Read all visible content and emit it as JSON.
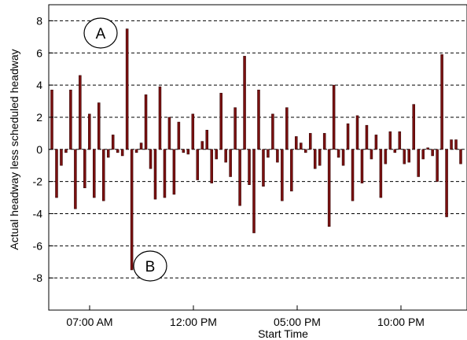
{
  "chart_data": {
    "type": "bar",
    "title": "",
    "xlabel": "Start Time",
    "ylabel": "Actual headway less scheduled headway",
    "x_tick_labels": [
      "07:00 AM",
      "12:00 PM",
      "05:00 PM",
      "10:00 PM"
    ],
    "y_tick_labels": [
      "-8",
      "-6",
      "-4",
      "-2",
      "0",
      "2",
      "4",
      "6",
      "8"
    ],
    "ylim": [
      -10,
      9
    ],
    "y_ticks": [
      -8,
      -6,
      -4,
      -2,
      0,
      2,
      4,
      6,
      8
    ],
    "grid": "horizontal dashed",
    "bar_color": "#7a1010",
    "annotations": [
      {
        "label": "A"
      },
      {
        "label": "B"
      }
    ],
    "series": [
      {
        "values": [
          3.7,
          -3.0,
          -1.0,
          -0.2,
          3.7,
          -3.7,
          4.6,
          -2.4,
          2.2,
          -3.0,
          2.9,
          -3.2,
          -0.5,
          0.9,
          -0.2,
          -0.4,
          7.5,
          -7.5,
          -0.2,
          0.4,
          3.4,
          -1.2,
          -3.1,
          3.9,
          -3.0,
          2.0,
          -2.8,
          1.7,
          -0.2,
          -0.3,
          2.2,
          -1.9,
          0.5,
          1.2,
          -2.1,
          -0.6,
          3.5,
          -0.8,
          -1.7,
          2.6,
          -3.5,
          5.8,
          -2.2,
          -5.2,
          3.7,
          -2.3,
          -0.5,
          2.2,
          -0.8,
          -3.2,
          2.6,
          -2.6,
          0.8,
          0.4,
          -0.2,
          1.0,
          -1.2,
          -1.0,
          1.0,
          -4.8,
          4.0,
          -0.5,
          -1.0,
          1.6,
          -3.2,
          2.1,
          -2.1,
          1.5,
          -0.6,
          0.9,
          -3.0,
          -0.9,
          1.1,
          -0.2,
          1.1,
          -0.9,
          -0.8,
          2.8,
          -1.7,
          -0.6,
          0.1,
          -0.4,
          -2.0,
          5.9,
          -4.2,
          0.6,
          0.6,
          -0.9
        ]
      }
    ]
  }
}
